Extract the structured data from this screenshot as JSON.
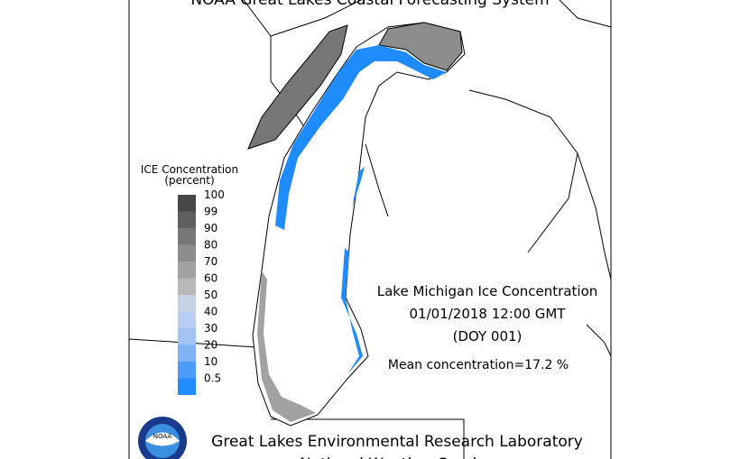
{
  "header": {
    "title": "NOAA Great Lakes Coastal Forecasting System"
  },
  "legend": {
    "title": [
      "ICE Concentration",
      "(percent)"
    ],
    "levels": [
      {
        "label": 100,
        "color": "#474747"
      },
      {
        "label": 99,
        "color": "#5f5f5f"
      },
      {
        "label": 90,
        "color": "#777777"
      },
      {
        "label": 80,
        "color": "#8c8c8c"
      },
      {
        "label": 70,
        "color": "#a2a2a2"
      },
      {
        "label": 60,
        "color": "#b8b8b8"
      },
      {
        "label": 50,
        "color": "#c6d2e6"
      },
      {
        "label": 40,
        "color": "#b8cdf0"
      },
      {
        "label": 30,
        "color": "#a4c3f5"
      },
      {
        "label": 20,
        "color": "#7fb1f7"
      },
      {
        "label": 10,
        "color": "#4e9cfa"
      },
      {
        "label": 0.5,
        "color": "#1e8cff"
      }
    ]
  },
  "info": {
    "lines": [
      "Lake Michigan Ice Concentration",
      "01/01/2018 12:00 GMT",
      "(DOY 001)"
    ],
    "mean": "Mean concentration=17.2 %"
  },
  "footer": {
    "lines": [
      "Great Lakes Environmental Research Laboratory",
      "National Weather Service"
    ]
  },
  "logo": {
    "text": "NOAA"
  }
}
